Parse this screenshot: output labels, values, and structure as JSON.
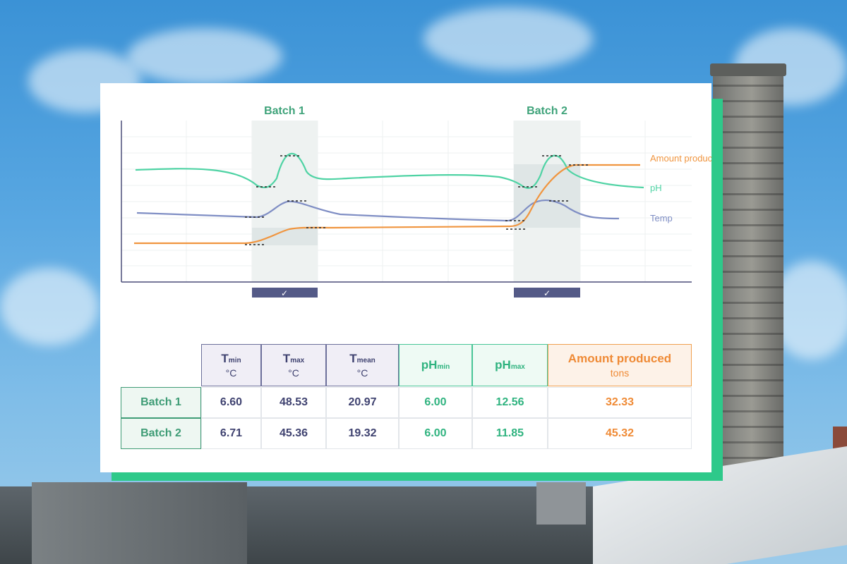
{
  "chart_data": {
    "type": "line",
    "batches": [
      "Batch 1",
      "Batch 2"
    ],
    "series": [
      {
        "name": "Amount produced",
        "color": "#f0953f"
      },
      {
        "name": "pH",
        "color": "#4fd3a4"
      },
      {
        "name": "Temp",
        "color": "#7f8ec4"
      }
    ],
    "batch_icon": "check-icon",
    "check_glyph": "✓"
  },
  "table": {
    "headers": [
      {
        "main": "T",
        "sub": "min",
        "unit": "°C",
        "kind": "t"
      },
      {
        "main": "T",
        "sub": "max",
        "unit": "°C",
        "kind": "t"
      },
      {
        "main": "T",
        "sub": "mean",
        "unit": "°C",
        "kind": "t"
      },
      {
        "main": "pH",
        "sub": "min",
        "unit": "",
        "kind": "ph"
      },
      {
        "main": "pH",
        "sub": "max",
        "unit": "",
        "kind": "ph"
      },
      {
        "main": "Amount produced",
        "sub": "",
        "unit": "tons",
        "kind": "amt"
      }
    ],
    "rows": [
      {
        "label": "Batch 1",
        "values": [
          "6.60",
          "48.53",
          "20.97",
          "6.00",
          "12.56",
          "32.33"
        ]
      },
      {
        "label": "Batch 2",
        "values": [
          "6.71",
          "45.36",
          "19.32",
          "6.00",
          "11.85",
          "45.32"
        ]
      }
    ]
  },
  "colors": {
    "accent_green": "#2ec98a",
    "temp": "#7f8ec4",
    "ph": "#4fd3a4",
    "amount": "#f0953f"
  }
}
